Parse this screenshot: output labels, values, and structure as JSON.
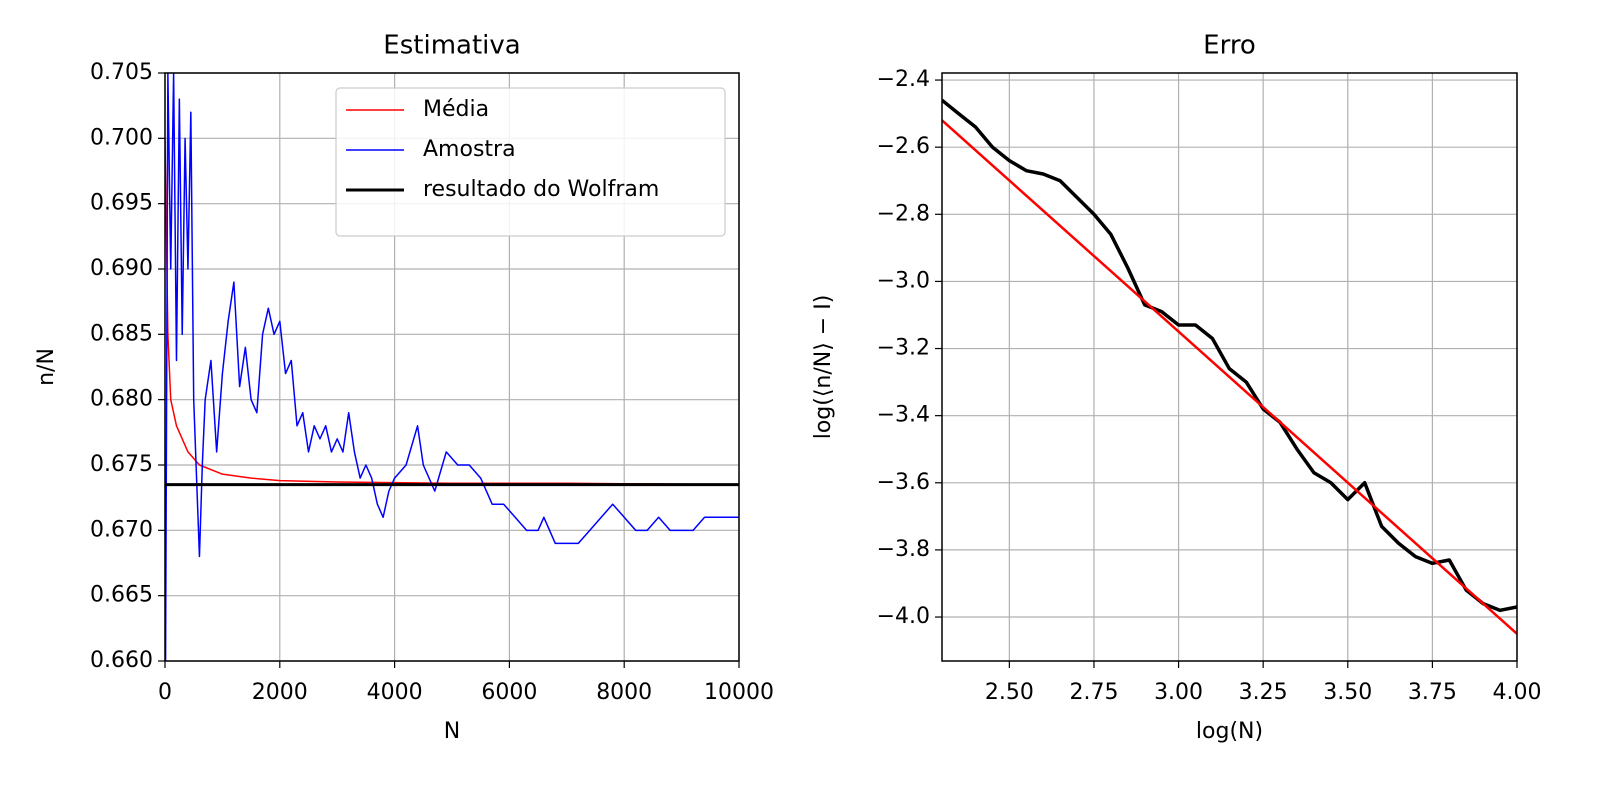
{
  "chart_data": [
    {
      "type": "line",
      "title": "Estimativa",
      "xlabel": "N",
      "ylabel": "n/N",
      "xlim": [
        0,
        10000
      ],
      "xticks": [
        0,
        2000,
        4000,
        6000,
        8000,
        10000
      ],
      "ylim": [
        0.66,
        0.705
      ],
      "yticks": [
        {
          "value": 0.66,
          "label": "0.660"
        },
        0.665,
        {
          "value": 0.67,
          "label": "0.670"
        },
        0.675,
        {
          "value": 0.68,
          "label": "0.680"
        },
        0.685,
        {
          "value": 0.69,
          "label": "0.690"
        },
        0.695,
        {
          "value": 0.7,
          "label": "0.700"
        },
        0.705
      ],
      "grid": true,
      "legend": "upper right",
      "series": [
        {
          "name": "Média",
          "color": "#ff0000",
          "x": [
            0,
            50,
            100,
            200,
            400,
            600,
            1000,
            1500,
            2000,
            3000,
            5000,
            7000,
            10000
          ],
          "values": [
            0.7,
            0.685,
            0.68,
            0.678,
            0.676,
            0.675,
            0.6743,
            0.674,
            0.6738,
            0.6737,
            0.6736,
            0.6736,
            0.6735
          ]
        },
        {
          "name": "Amostra",
          "color": "#0000ff",
          "x": [
            10,
            50,
            100,
            150,
            200,
            250,
            300,
            350,
            400,
            450,
            500,
            550,
            600,
            650,
            700,
            800,
            900,
            1000,
            1100,
            1200,
            1300,
            1400,
            1500,
            1600,
            1700,
            1800,
            1900,
            2000,
            2100,
            2200,
            2300,
            2400,
            2500,
            2600,
            2700,
            2800,
            2900,
            3000,
            3100,
            3200,
            3300,
            3400,
            3500,
            3600,
            3700,
            3800,
            3900,
            4000,
            4200,
            4400,
            4500,
            4700,
            4900,
            5100,
            5300,
            5500,
            5700,
            5900,
            6100,
            6300,
            6500,
            6600,
            6800,
            7000,
            7200,
            7400,
            7600,
            7800,
            8000,
            8200,
            8400,
            8600,
            8800,
            9000,
            9200,
            9400,
            9600,
            9800,
            10000
          ],
          "values": [
            0.66,
            0.705,
            0.69,
            0.705,
            0.683,
            0.703,
            0.685,
            0.7,
            0.69,
            0.702,
            0.68,
            0.674,
            0.668,
            0.675,
            0.68,
            0.683,
            0.676,
            0.682,
            0.686,
            0.689,
            0.681,
            0.684,
            0.68,
            0.679,
            0.685,
            0.687,
            0.685,
            0.686,
            0.682,
            0.683,
            0.678,
            0.679,
            0.676,
            0.678,
            0.677,
            0.678,
            0.676,
            0.677,
            0.676,
            0.679,
            0.676,
            0.674,
            0.675,
            0.674,
            0.672,
            0.671,
            0.673,
            0.674,
            0.675,
            0.678,
            0.675,
            0.673,
            0.676,
            0.675,
            0.675,
            0.674,
            0.672,
            0.672,
            0.671,
            0.67,
            0.67,
            0.671,
            0.669,
            0.669,
            0.669,
            0.67,
            0.671,
            0.672,
            0.671,
            0.67,
            0.67,
            0.671,
            0.67,
            0.67,
            0.67,
            0.671,
            0.671,
            0.671,
            0.671
          ]
        },
        {
          "name": "resultado do Wolfram",
          "color": "#000000",
          "x": [
            0,
            10000
          ],
          "values": [
            0.6735,
            0.6735
          ]
        }
      ]
    },
    {
      "type": "line",
      "title": "Erro",
      "xlabel": "log(N)",
      "ylabel": "log(⟨n/N⟩ − I)",
      "xlim": [
        2.301,
        4.0
      ],
      "xticks": [
        {
          "value": 2.5,
          "label": "2.50"
        },
        2.75,
        {
          "value": 3.0,
          "label": "3.00"
        },
        3.25,
        {
          "value": 3.5,
          "label": "3.50"
        },
        3.75,
        {
          "value": 4.0,
          "label": "4.00"
        }
      ],
      "ylim": [
        -4.131,
        -2.379
      ],
      "yticks": [
        {
          "value": -4.0,
          "label": "−4.0"
        },
        {
          "value": -3.8,
          "label": "−3.8"
        },
        {
          "value": -3.6,
          "label": "−3.6"
        },
        {
          "value": -3.4,
          "label": "−3.4"
        },
        {
          "value": -3.2,
          "label": "−3.2"
        },
        {
          "value": -3.0,
          "label": "−3.0"
        },
        {
          "value": -2.8,
          "label": "−2.8"
        },
        {
          "value": -2.6,
          "label": "−2.6"
        },
        {
          "value": -2.4,
          "label": "−2.4"
        }
      ],
      "grid": true,
      "series": [
        {
          "color": "#000000",
          "x": [
            2.301,
            2.35,
            2.4,
            2.45,
            2.5,
            2.55,
            2.6,
            2.65,
            2.7,
            2.75,
            2.8,
            2.85,
            2.9,
            2.95,
            3.0,
            3.05,
            3.1,
            3.15,
            3.2,
            3.25,
            3.3,
            3.35,
            3.4,
            3.45,
            3.5,
            3.55,
            3.6,
            3.65,
            3.7,
            3.75,
            3.8,
            3.85,
            3.9,
            3.95,
            4.0
          ],
          "values": [
            -2.46,
            -2.5,
            -2.54,
            -2.6,
            -2.64,
            -2.67,
            -2.68,
            -2.7,
            -2.75,
            -2.8,
            -2.86,
            -2.96,
            -3.07,
            -3.09,
            -3.13,
            -3.13,
            -3.17,
            -3.26,
            -3.3,
            -3.38,
            -3.42,
            -3.5,
            -3.57,
            -3.6,
            -3.65,
            -3.6,
            -3.73,
            -3.78,
            -3.82,
            -3.84,
            -3.83,
            -3.92,
            -3.96,
            -3.98,
            -3.97
          ]
        },
        {
          "color": "#ff0000",
          "x": [
            2.301,
            4.0
          ],
          "values": [
            -2.52,
            -4.05
          ]
        }
      ]
    }
  ]
}
